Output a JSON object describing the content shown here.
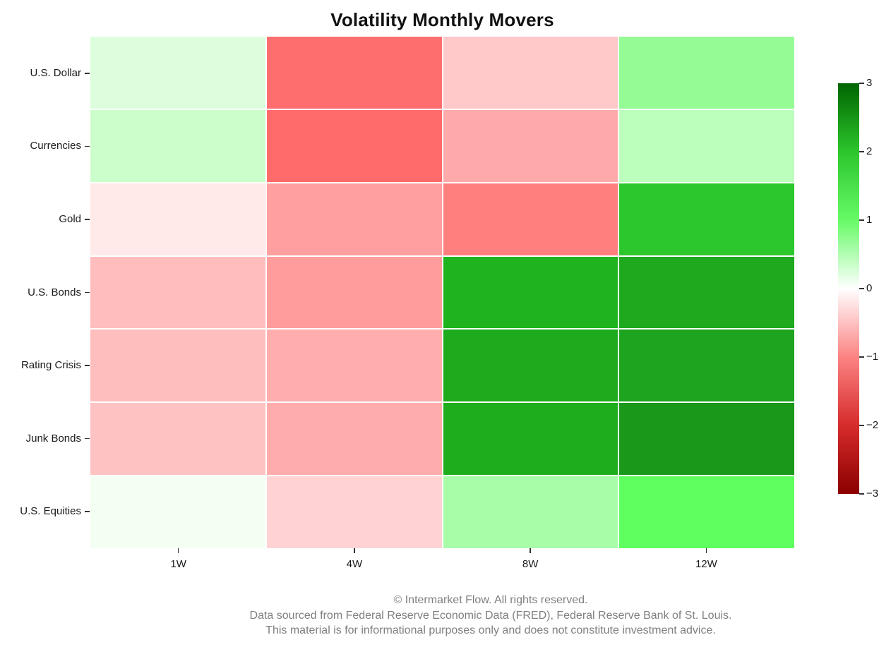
{
  "title": "Volatility Monthly Movers",
  "footer": {
    "lines": [
      "© Intermarket Flow. All rights reserved.",
      "Data sourced from Federal Reserve Economic Data (FRED), Federal Reserve Bank of St. Louis.",
      "This material is for informational purposes only and does not constitute investment advice."
    ]
  },
  "chart_data": {
    "type": "heatmap",
    "title": "Volatility Monthly Movers",
    "columns": [
      "1W",
      "4W",
      "8W",
      "12W"
    ],
    "rows": [
      "U.S. Dollar",
      "Currencies",
      "Gold",
      "U.S. Bonds",
      "Rating Crisis",
      "Junk Bonds",
      "U.S. Equities"
    ],
    "values": [
      [
        0.2,
        -1.3,
        -0.4,
        0.8
      ],
      [
        0.3,
        -1.3,
        -0.7,
        0.4
      ],
      [
        -0.15,
        -0.8,
        -1.0,
        2.0
      ],
      [
        -0.5,
        -0.8,
        2.1,
        2.25
      ],
      [
        -0.5,
        -0.65,
        2.2,
        2.3
      ],
      [
        -0.5,
        -0.7,
        2.2,
        2.45
      ],
      [
        0.05,
        -0.35,
        0.65,
        1.2
      ]
    ],
    "cell_colors": [
      [
        "#dcfedc",
        "#ff6e6e",
        "#ffc9c9",
        "#95fb95"
      ],
      [
        "#cbfecb",
        "#ff6a6a",
        "#ffaaaa",
        "#bcfebc"
      ],
      [
        "#ffe9e9",
        "#ff9f9f",
        "#ff7f7f",
        "#2cc72c"
      ],
      [
        "#ffbdbd",
        "#ff9d9d",
        "#1fb41f",
        "#1fa91f"
      ],
      [
        "#ffbebe",
        "#ffadad",
        "#1dab1d",
        "#1ea41e"
      ],
      [
        "#ffc2c2",
        "#ffacac",
        "#1dad1d",
        "#199819"
      ],
      [
        "#f4fff4",
        "#ffd3d3",
        "#a8fea8",
        "#5fff5f"
      ]
    ],
    "colorbar": {
      "min": -3,
      "max": 3,
      "tick_labels": [
        "3",
        "2",
        "1",
        "0",
        "−1",
        "−2",
        "−3"
      ],
      "gradient_stops": [
        {
          "value": -3,
          "color": "#8b0000"
        },
        {
          "value": -2,
          "color": "#d62b2b"
        },
        {
          "value": -1,
          "color": "#fc8383"
        },
        {
          "value": 0,
          "color": "#ffffff"
        },
        {
          "value": 1,
          "color": "#66fb66"
        },
        {
          "value": 2,
          "color": "#2cc52c"
        },
        {
          "value": 3,
          "color": "#006400"
        }
      ]
    },
    "grid_lines": "white",
    "legend_position": "colorbar-right"
  }
}
